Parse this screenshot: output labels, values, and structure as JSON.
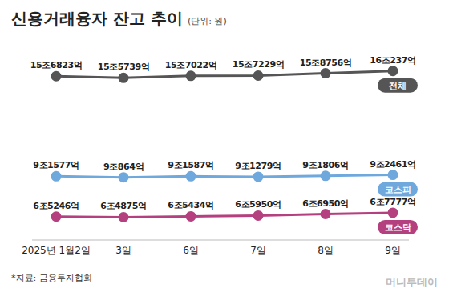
{
  "chart_data": {
    "type": "line",
    "title": "신용거래융자 잔고 추이",
    "subtitle": "(단위: 원)",
    "annotations": [
      "*자료: 금융투자협회",
      "머니투데이"
    ],
    "categories": [
      "2025년 1월2일",
      "3일",
      "6일",
      "7일",
      "8일",
      "9일"
    ],
    "series": [
      {
        "name": "전체",
        "color": "#555555",
        "marker": "circle",
        "values": [
          156823,
          155739,
          157022,
          157229,
          158756,
          160237
        ],
        "value_labels": [
          "15조6823억",
          "15조5739억",
          "15조7022억",
          "15조7229억",
          "15조8756억",
          "16조237억"
        ]
      },
      {
        "name": "코스피",
        "color": "#6fa8dc",
        "marker": "circle",
        "values": [
          91577,
          90864,
          91587,
          91279,
          91806,
          92461
        ],
        "value_labels": [
          "9조1577억",
          "9조864억",
          "9조1587억",
          "9조1279억",
          "9조1806억",
          "9조2461억"
        ]
      },
      {
        "name": "코스닥",
        "color": "#b5407f",
        "marker": "circle",
        "values": [
          65246,
          64875,
          65434,
          65950,
          66950,
          67777
        ],
        "value_labels": [
          "6조5246억",
          "6조4875억",
          "6조5434억",
          "6조5950억",
          "6조6950억",
          "6조7777억"
        ]
      }
    ],
    "ylim": [
      50000,
      170000
    ],
    "yticks": [
      50000,
      170000
    ],
    "tick_labels": "x",
    "data_labels": true,
    "grid": false
  }
}
